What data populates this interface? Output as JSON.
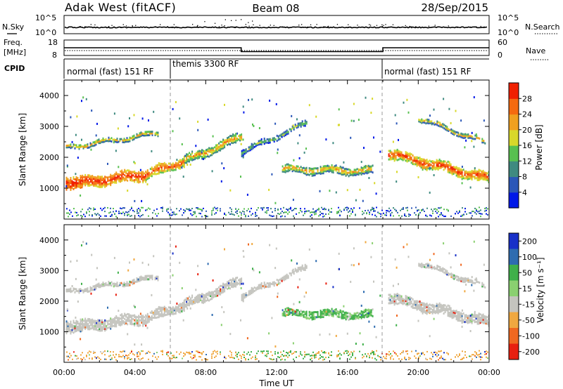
{
  "header": {
    "station": "Adak West (fitACF)",
    "beam": "Beam 08",
    "date": "28/Sep/2015"
  },
  "nsky_panel": {
    "left_label": "N.Sky",
    "right_label": "N.Search",
    "left_ticks": [
      "10^5",
      "10^0"
    ],
    "right_ticks": [
      "10^5",
      "10^0"
    ]
  },
  "freq_panel": {
    "left_label_line1": "Freq.",
    "left_label_line2": "[MHz]",
    "left_ticks": [
      "18",
      "8"
    ],
    "right_label": "Nave",
    "right_ticks": [
      "60",
      "0"
    ]
  },
  "cpid_panel": {
    "label": "CPID",
    "segments": [
      "normal (fast) 151 RF",
      "themis 3300 RF",
      "normal (fast) 151 RF"
    ]
  },
  "power_panel": {
    "ylabel": "Slant Range [km]",
    "yticks": [
      "1000",
      "2000",
      "3000",
      "4000"
    ],
    "colorbar_label": "Power [dB]",
    "colorbar_ticks": [
      "4",
      "8",
      "12",
      "16",
      "20",
      "24",
      "28"
    ],
    "colors": [
      "#0018e8",
      "#2b57b8",
      "#3f8a80",
      "#58c050",
      "#d8d82a",
      "#f0a020",
      "#f56a10",
      "#f02000"
    ]
  },
  "velocity_panel": {
    "ylabel": "Slant Range [km]",
    "yticks": [
      "1000",
      "2000",
      "3000",
      "4000"
    ],
    "colorbar_label": "Velocity [m s⁻¹]",
    "colorbar_ticks": [
      "200",
      "100",
      "50",
      "15",
      "-15",
      "-50",
      "-100",
      "-200"
    ],
    "colors": [
      "#1830c8",
      "#2e6cb0",
      "#3fb04a",
      "#8ad070",
      "#c4c4be",
      "#f0a840",
      "#f06820",
      "#e82010"
    ],
    "ground_scatter_color": "#c4c4be"
  },
  "xaxis": {
    "ticks": [
      "00:00",
      "04:00",
      "08:00",
      "12:00",
      "16:00",
      "20:00",
      "00:00"
    ],
    "label": "Time UT"
  },
  "chart_data": {
    "type": "heatmap",
    "title": "Adak West (fitACF)  Beam 08  28/Sep/2015",
    "xlabel": "Time UT",
    "ylabel": "Slant Range [km]",
    "xlim": [
      0,
      24
    ],
    "ylim": [
      0,
      4500
    ],
    "mode_changes_hours": [
      6,
      18
    ],
    "frequency_mhz": [
      {
        "start": 0,
        "end": 10,
        "value": 13
      },
      {
        "start": 10,
        "end": 18,
        "value": 10.5
      },
      {
        "start": 18,
        "end": 24,
        "value": 13
      }
    ],
    "nsky_approx_level": 1,
    "scatter_bands": [
      {
        "t0": 0.1,
        "t1": 1.0,
        "r0": 1250,
        "r1": 1250,
        "h": 350,
        "power": "22-30",
        "velocity": "ground"
      },
      {
        "t0": 1.0,
        "t1": 4.6,
        "r0": 1230,
        "r1": 1480,
        "h": 300,
        "power": "20-30",
        "velocity": "ground"
      },
      {
        "t0": 4.6,
        "t1": 6.8,
        "r0": 1470,
        "r1": 1930,
        "h": 280,
        "power": "16-28",
        "velocity": "ground"
      },
      {
        "t0": 6.8,
        "t1": 10.0,
        "r0": 1930,
        "r1": 2700,
        "h": 250,
        "power": "10-24",
        "velocity": "ground"
      },
      {
        "t0": 0.1,
        "t1": 5.3,
        "r0": 2350,
        "r1": 2820,
        "h": 120,
        "power": "8-22",
        "velocity": "ground"
      },
      {
        "t0": 10.0,
        "t1": 13.7,
        "r0": 2200,
        "r1": 3150,
        "h": 140,
        "power": "4-16",
        "velocity": "ground"
      },
      {
        "t0": 12.3,
        "t1": 17.4,
        "r0": 1650,
        "r1": 1600,
        "h": 220,
        "power": "8-24",
        "velocity": "15-50"
      },
      {
        "t0": 18.3,
        "t1": 24.0,
        "r0": 2150,
        "r1": 1350,
        "h": 300,
        "power": "16-30",
        "velocity": "ground"
      },
      {
        "t0": 20.0,
        "t1": 23.8,
        "r0": 3300,
        "r1": 2500,
        "h": 120,
        "power": "8-22",
        "velocity": "ground"
      }
    ],
    "near_range_noise_km": [
      100,
      400
    ]
  }
}
